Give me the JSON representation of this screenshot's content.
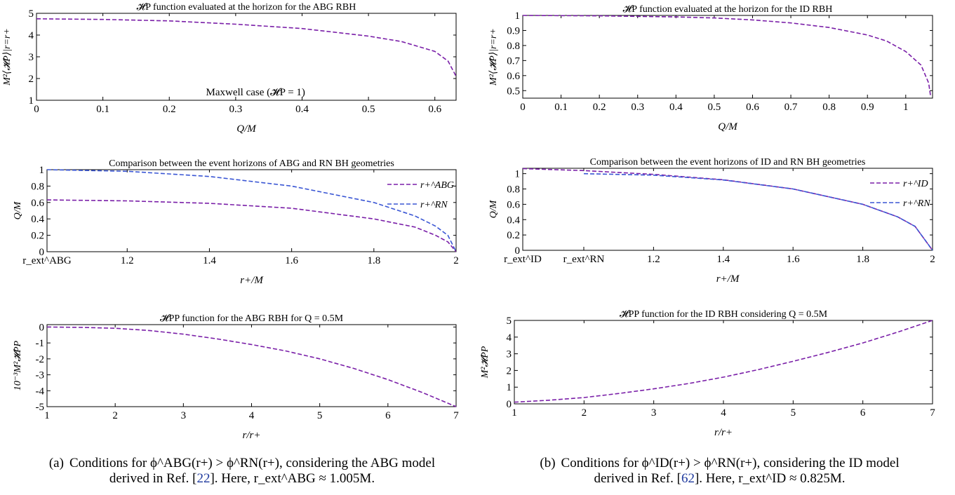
{
  "chart_data": [
    {
      "id": "a1",
      "type": "line",
      "title": "𝓗P function evaluated at the horizon for the ABG RBH",
      "xlabel": "Q/M",
      "ylabel": "M²⟨𝓗P⟩|r=r+",
      "xlim": [
        0,
        0.632
      ],
      "ylim": [
        1,
        5
      ],
      "xticks": [
        0,
        0.1,
        0.2,
        0.3,
        0.4,
        0.5,
        0.6
      ],
      "xtick_labels": [
        "0",
        "0.1",
        "0.2",
        "0.3",
        "0.4",
        "0.5",
        "0.6"
      ],
      "yticks": [
        1,
        2,
        3,
        4,
        5
      ],
      "ytick_labels": [
        "1",
        "2",
        "3",
        "4",
        "5"
      ],
      "annotation": "Maxwell case (𝓗P = 1)",
      "series": [
        {
          "color": "#7a1fa8",
          "dash": "6 3",
          "x": [
            0,
            0.1,
            0.2,
            0.3,
            0.4,
            0.5,
            0.55,
            0.6,
            0.62,
            0.632
          ],
          "y": [
            4.75,
            4.72,
            4.65,
            4.5,
            4.3,
            3.95,
            3.7,
            3.25,
            2.8,
            2.1
          ]
        }
      ]
    },
    {
      "id": "b1",
      "type": "line",
      "title": "𝓗P function evaluated at the horizon for the ID RBH",
      "xlabel": "Q/M",
      "ylabel": "M²⟨𝓗P⟩|r=r+",
      "xlim": [
        0,
        1.07
      ],
      "ylim": [
        0.45,
        1.0
      ],
      "xticks": [
        0,
        0.1,
        0.2,
        0.3,
        0.4,
        0.5,
        0.6,
        0.7,
        0.8,
        0.9,
        1.0
      ],
      "xtick_labels": [
        "0",
        "0.1",
        "0.2",
        "0.3",
        "0.4",
        "0.5",
        "0.6",
        "0.7",
        "0.8",
        "0.9",
        "1"
      ],
      "yticks": [
        0.5,
        0.6,
        0.7,
        0.8,
        0.9,
        1.0
      ],
      "ytick_labels": [
        "0.5",
        "0.6",
        "0.7",
        "0.8",
        "0.9",
        "1"
      ],
      "series": [
        {
          "color": "#7a1fa8",
          "dash": "6 3",
          "x": [
            0,
            0.2,
            0.4,
            0.5,
            0.6,
            0.7,
            0.8,
            0.9,
            0.95,
            1.0,
            1.04,
            1.06,
            1.065
          ],
          "y": [
            1.0,
            0.997,
            0.99,
            0.983,
            0.97,
            0.95,
            0.92,
            0.87,
            0.83,
            0.76,
            0.67,
            0.55,
            0.46
          ]
        }
      ]
    },
    {
      "id": "a2",
      "type": "line",
      "title": "Comparison between the event horizons of ABG and RN BH geometries",
      "xlabel": "r+/M",
      "ylabel": "Q/M",
      "xlim": [
        1.005,
        2
      ],
      "ylim": [
        0,
        1.0
      ],
      "xticks": [
        1.005,
        1.2,
        1.4,
        1.6,
        1.8,
        2
      ],
      "xtick_labels": [
        "r_ext^ABG",
        "1.2",
        "1.4",
        "1.6",
        "1.8",
        "2"
      ],
      "yticks": [
        0,
        0.2,
        0.4,
        0.6,
        0.8,
        1.0
      ],
      "ytick_labels": [
        "0",
        "0.2",
        "0.4",
        "0.6",
        "0.8",
        "1"
      ],
      "legend_position": "right",
      "series": [
        {
          "name": "r+^ABG",
          "color": "#7a1fa8",
          "dash": "6 3",
          "x": [
            1.005,
            1.2,
            1.4,
            1.6,
            1.8,
            1.9,
            1.95,
            1.98,
            2.0
          ],
          "y": [
            0.632,
            0.62,
            0.59,
            0.53,
            0.4,
            0.3,
            0.2,
            0.12,
            0.0
          ]
        },
        {
          "name": "r+^RN",
          "color": "#3a56d4",
          "dash": "6 3",
          "x": [
            1.005,
            1.2,
            1.4,
            1.6,
            1.8,
            1.9,
            1.95,
            1.98,
            2.0
          ],
          "y": [
            1.0,
            0.98,
            0.917,
            0.8,
            0.6,
            0.436,
            0.312,
            0.199,
            0.0
          ]
        }
      ]
    },
    {
      "id": "b2",
      "type": "line",
      "title": "Comparison between the event horizons of ID and RN BH geometries",
      "xlabel": "r+/M",
      "ylabel": "Q/M",
      "xlim": [
        0.825,
        2
      ],
      "ylim": [
        0,
        1.07
      ],
      "xticks": [
        0.825,
        1.0,
        1.2,
        1.4,
        1.6,
        1.8,
        2
      ],
      "xtick_labels": [
        "r_ext^ID",
        "r_ext^RN",
        "1.2",
        "1.4",
        "1.6",
        "1.8",
        "2"
      ],
      "yticks": [
        0,
        0.2,
        0.4,
        0.6,
        0.8,
        1.0
      ],
      "ytick_labels": [
        "0",
        "0.2",
        "0.4",
        "0.6",
        "0.8",
        "1"
      ],
      "legend_position": "right",
      "series": [
        {
          "name": "r+^ID",
          "color": "#7a1fa8",
          "dash": "6 3",
          "x": [
            0.825,
            1.0,
            1.2,
            1.4,
            1.6,
            1.8,
            1.9,
            1.95,
            2.0
          ],
          "y": [
            1.065,
            1.04,
            0.99,
            0.92,
            0.8,
            0.6,
            0.436,
            0.312,
            0.0
          ]
        },
        {
          "name": "r+^RN",
          "color": "#3a56d4",
          "dash": "6 3",
          "x": [
            1.0,
            1.2,
            1.4,
            1.6,
            1.8,
            1.9,
            1.95,
            2.0
          ],
          "y": [
            1.0,
            0.98,
            0.917,
            0.8,
            0.6,
            0.436,
            0.312,
            0.0
          ]
        }
      ]
    },
    {
      "id": "a3",
      "type": "line",
      "title": "𝓗PP function for the ABG RBH for Q = 0.5M",
      "xlabel": "r/r+",
      "ylabel": "10⁻³M²𝓗PP",
      "xlim": [
        1,
        7
      ],
      "ylim": [
        -5,
        0.15
      ],
      "xticks": [
        1,
        2,
        3,
        4,
        5,
        6,
        7
      ],
      "xtick_labels": [
        "1",
        "2",
        "3",
        "4",
        "5",
        "6",
        "7"
      ],
      "yticks": [
        0,
        -1,
        -2,
        -3,
        -4,
        -5
      ],
      "ytick_labels": [
        "0",
        "-1",
        "-2",
        "-3",
        "-4",
        "-5"
      ],
      "series": [
        {
          "color": "#7a1fa8",
          "dash": "6 3",
          "x": [
            1,
            1.5,
            2,
            2.5,
            3,
            3.5,
            4,
            4.5,
            5,
            5.5,
            6,
            6.5,
            7
          ],
          "y": [
            0,
            -0.02,
            -0.08,
            -0.22,
            -0.45,
            -0.75,
            -1.1,
            -1.5,
            -2.0,
            -2.6,
            -3.3,
            -4.1,
            -5.0
          ]
        }
      ]
    },
    {
      "id": "b3",
      "type": "line",
      "title": "𝓗PP function for the ID RBH considering Q = 0.5M",
      "xlabel": "r/r+",
      "ylabel": "M²𝓗PP",
      "xlim": [
        1,
        7
      ],
      "ylim": [
        0,
        5
      ],
      "xticks": [
        1,
        2,
        3,
        4,
        5,
        6,
        7
      ],
      "xtick_labels": [
        "1",
        "2",
        "3",
        "4",
        "5",
        "6",
        "7"
      ],
      "yticks": [
        0,
        1,
        2,
        3,
        4,
        5
      ],
      "ytick_labels": [
        "0",
        "1",
        "2",
        "3",
        "4",
        "5"
      ],
      "series": [
        {
          "color": "#7a1fa8",
          "dash": "6 3",
          "x": [
            1,
            1.5,
            2,
            2.5,
            3,
            3.5,
            4,
            4.5,
            5,
            5.5,
            6,
            6.5,
            7
          ],
          "y": [
            0.1,
            0.22,
            0.38,
            0.62,
            0.9,
            1.22,
            1.6,
            2.05,
            2.55,
            3.08,
            3.65,
            4.3,
            5.0
          ]
        }
      ]
    }
  ],
  "captions": {
    "a": {
      "label": "(a)",
      "line1": "Conditions for ϕ^ABG(r+) > ϕ^RN(r+), considering the ABG model",
      "line2_pre": "derived in Ref. [",
      "ref": "22",
      "line2_post": "]. Here, r_ext^ABG ≈ 1.005M."
    },
    "b": {
      "label": "(b)",
      "line1": "Conditions for ϕ^ID(r+) > ϕ^RN(r+), considering the ID model",
      "line2_pre": "derived in Ref. [",
      "ref": "62",
      "line2_post": "]. Here, r_ext^ID ≈ 0.825M."
    }
  }
}
